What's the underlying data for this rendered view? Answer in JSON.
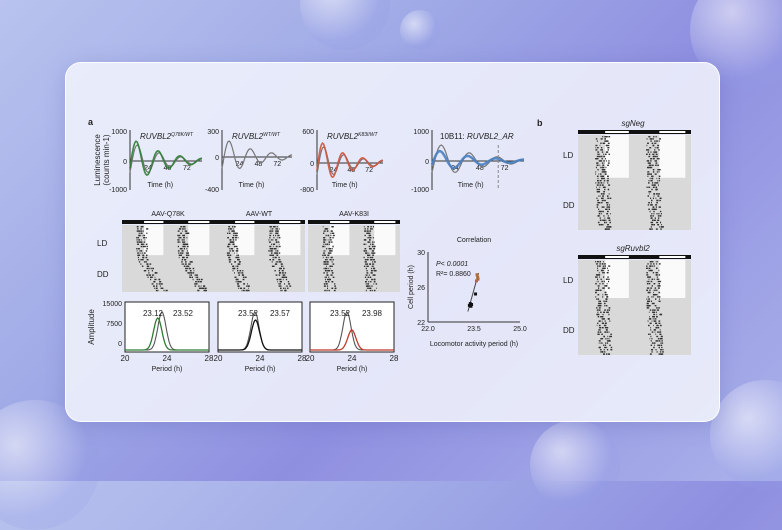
{
  "panel_a": {
    "label": "a",
    "luminescence": {
      "ylabel_line1": "Luminescence",
      "ylabel_line2": "(counts min-1)",
      "xlabel": "Time (h)",
      "xticks": [
        "24",
        "48",
        "72"
      ],
      "plots": [
        {
          "title": "RUVBL2",
          "sup": "Q78K/WT",
          "ymax": "1000",
          "ymid": "0",
          "ymin": "-1000",
          "color": "#2e7d32"
        },
        {
          "title": "RUVBL2",
          "sup": "WT/WT",
          "ymax": "300",
          "ymid": "0",
          "ymin": "-400",
          "color": "#555555"
        },
        {
          "title": "RUVBL2",
          "sup": "K83I/WT",
          "ymax": "600",
          "ymid": "0",
          "ymin": "-800",
          "color": "#d0533a"
        },
        {
          "title_prefix": "10B11: ",
          "title": "RUVBL2_AR",
          "ymax": "1000",
          "ymid": "0",
          "ymin": "-1000",
          "color": "#4a7fc0"
        }
      ]
    },
    "actograms": {
      "row_labels": [
        "LD",
        "DD"
      ],
      "titles": [
        "AAV-Q78K",
        "AAV-WT",
        "AAV-K83I"
      ]
    },
    "amplitude": {
      "ylabel": "Amplitude",
      "yticks": [
        "15000",
        "7500",
        "0"
      ],
      "xticks": [
        "20",
        "24",
        "28"
      ],
      "xlabel": "Period (h)",
      "plots": [
        {
          "ref_label": "23.52",
          "test_label": "23.12",
          "ref_peak": 23.52,
          "test_peak": 23.12,
          "color": "#2e7d32"
        },
        {
          "ref_label": "23.52",
          "test_label": "23.57",
          "ref_peak": 23.52,
          "test_peak": 23.57,
          "color": "#c0392b"
        },
        {
          "ref_label": "23.52",
          "test_label": "23.98",
          "ref_peak": 23.52,
          "test_peak": 23.98,
          "color": "#c0392b"
        }
      ]
    }
  },
  "chart_data": {
    "type": "scatter",
    "title": "Correlation",
    "xlabel": "Locomotor activity period (h)",
    "ylabel": "Cell period (h)",
    "xlim": [
      22.0,
      25.0
    ],
    "ylim": [
      22,
      30
    ],
    "xticks": [
      "22.0",
      "23.5",
      "25.0"
    ],
    "yticks": [
      "30",
      "26",
      "22"
    ],
    "annotation_p": "P< 0.0001",
    "annotation_r2": "R²= 0.8860",
    "x": [
      23.35,
      23.38,
      23.4,
      23.42,
      23.55,
      23.58,
      23.6,
      23.62,
      23.63
    ],
    "y": [
      23.9,
      24.1,
      23.8,
      24.0,
      25.2,
      26.7,
      27.4,
      27.1,
      26.9
    ]
  },
  "panel_b": {
    "label": "b",
    "titles": [
      "sgNeg",
      "sgRuvbl2"
    ],
    "row_labels": [
      "LD",
      "DD"
    ]
  }
}
